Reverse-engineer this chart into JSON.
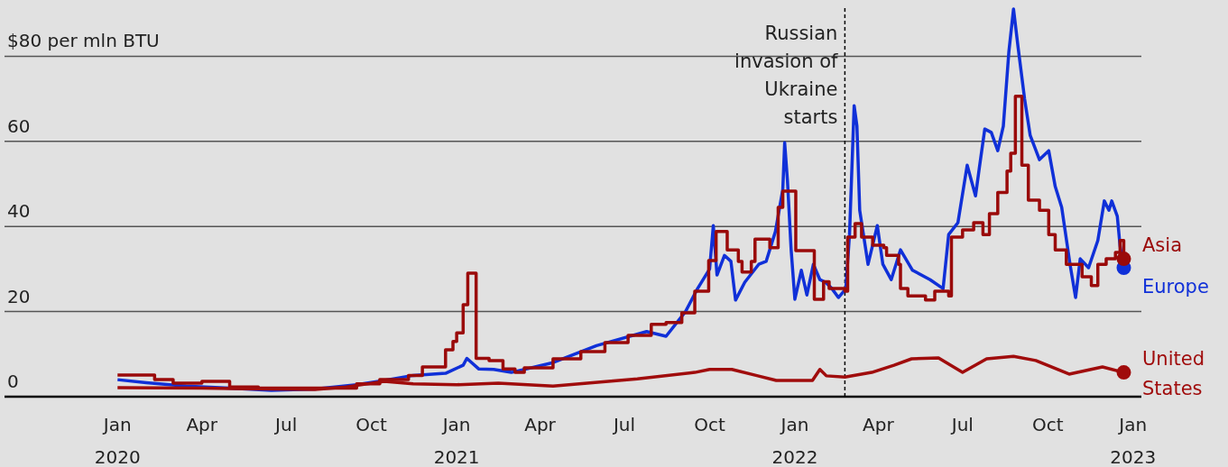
{
  "chart_data": {
    "type": "line",
    "xlim": [
      "2019-09-01",
      "2023-01-10"
    ],
    "ylim": [
      0,
      93
    ],
    "xticks": [
      {
        "value": "2020-01-01",
        "label": "Jan\n2020"
      },
      {
        "value": "2020-04-01",
        "label": "Apr"
      },
      {
        "value": "2020-07-01",
        "label": "Jul"
      },
      {
        "value": "2020-10-01",
        "label": "Oct"
      },
      {
        "value": "2021-01-01",
        "label": "Jan\n2021"
      },
      {
        "value": "2021-04-01",
        "label": "Apr"
      },
      {
        "value": "2021-07-01",
        "label": "Jul"
      },
      {
        "value": "2021-10-01",
        "label": "Oct"
      },
      {
        "value": "2022-01-01",
        "label": "Jan\n2022"
      },
      {
        "value": "2022-04-01",
        "label": "Apr"
      },
      {
        "value": "2022-07-01",
        "label": "Jul"
      },
      {
        "value": "2022-10-01",
        "label": "Oct"
      },
      {
        "value": "2023-01-01",
        "label": "Jan\n2023"
      }
    ],
    "yticks": [
      0,
      20,
      40,
      60,
      {
        "value": 80,
        "label": "$80 per mln BTU"
      }
    ],
    "grid": "y",
    "ref_lines": [
      {
        "axis": "x",
        "value": "2022-02-24",
        "label": "Russian invasion of Ukraine starts",
        "color": "#000000",
        "line_style": "dashed"
      }
    ],
    "series": [
      {
        "name": "Europe",
        "color": "#1030d8",
        "x": [
          "2020-01-01",
          "2020-02-01",
          "2020-03-15",
          "2020-05-01",
          "2020-06-15",
          "2020-08-01",
          "2020-09-15",
          "2020-10-15",
          "2020-11-15",
          "2020-12-20",
          "2021-01-08",
          "2021-01-12",
          "2021-01-25",
          "2021-02-10",
          "2021-03-01",
          "2021-04-15",
          "2021-06-01",
          "2021-07-25",
          "2021-08-15",
          "2021-09-05",
          "2021-09-18",
          "2021-10-01",
          "2021-10-05",
          "2021-10-09",
          "2021-10-17",
          "2021-10-24",
          "2021-10-29",
          "2021-11-08",
          "2021-11-23",
          "2021-12-01",
          "2021-12-11",
          "2021-12-19",
          "2021-12-21",
          "2021-12-24",
          "2021-12-28",
          "2022-01-01",
          "2022-01-08",
          "2022-01-14",
          "2022-01-21",
          "2022-01-28",
          "2022-02-03",
          "2022-02-10",
          "2022-02-17",
          "2022-02-23",
          "2022-02-25",
          "2022-03-01",
          "2022-03-06",
          "2022-03-09",
          "2022-03-12",
          "2022-03-21",
          "2022-03-31",
          "2022-04-06",
          "2022-04-15",
          "2022-04-25",
          "2022-05-08",
          "2022-05-27",
          "2022-06-10",
          "2022-06-16",
          "2022-06-26",
          "2022-07-06",
          "2022-07-15",
          "2022-07-19",
          "2022-07-25",
          "2022-08-01",
          "2022-08-08",
          "2022-08-14",
          "2022-08-20",
          "2022-08-25",
          "2022-08-30",
          "2022-09-06",
          "2022-09-12",
          "2022-09-22",
          "2022-10-02",
          "2022-10-09",
          "2022-10-16",
          "2022-10-25",
          "2022-10-31",
          "2022-11-05",
          "2022-11-14",
          "2022-11-24",
          "2022-12-01",
          "2022-12-06",
          "2022-12-09",
          "2022-12-15",
          "2022-12-18",
          "2022-12-22"
        ],
        "values": [
          4.0,
          3.3,
          2.5,
          2.0,
          1.5,
          1.8,
          2.8,
          3.8,
          5.0,
          5.5,
          7.4,
          9,
          6.5,
          6.4,
          5.7,
          8,
          12,
          15.3,
          14.2,
          20,
          25.4,
          30,
          40.2,
          28.6,
          33.2,
          31.8,
          22.7,
          26.9,
          31.1,
          31.8,
          38.8,
          48.7,
          59.7,
          50.8,
          34.5,
          22.9,
          29.7,
          23.9,
          31.1,
          27.5,
          26.9,
          25.4,
          23.3,
          24.8,
          25.4,
          38.1,
          68.4,
          63.6,
          43.8,
          31.1,
          40.2,
          31.1,
          27.5,
          34.5,
          29.7,
          27.5,
          25.4,
          38.1,
          40.9,
          54.4,
          47.2,
          53.6,
          62.9,
          62.1,
          57.8,
          63.6,
          81.1,
          91.1,
          82,
          69.9,
          61.4,
          55.7,
          57.8,
          49.4,
          44.5,
          31.1,
          23.3,
          32.4,
          30.3,
          36.7,
          46,
          43.8,
          46,
          42.4,
          35.4,
          30.3
        ]
      },
      {
        "name": "Asia",
        "type": "step",
        "color": "#9a0a0a",
        "x": [
          "2020-01-01",
          "2020-02-10",
          "2020-03-01",
          "2020-04-01",
          "2020-05-01",
          "2020-06-01",
          "2020-08-01",
          "2020-09-15",
          "2020-10-10",
          "2020-11-10",
          "2020-11-25",
          "2020-12-15",
          "2020-12-20",
          "2020-12-28",
          "2021-01-01",
          "2021-01-08",
          "2021-01-13",
          "2021-01-22",
          "2021-02-05",
          "2021-02-20",
          "2021-03-05",
          "2021-03-15",
          "2021-04-15",
          "2021-05-15",
          "2021-06-10",
          "2021-07-05",
          "2021-07-30",
          "2021-08-15",
          "2021-09-01",
          "2021-09-15",
          "2021-09-30",
          "2021-10-08",
          "2021-10-20",
          "2021-11-01",
          "2021-11-05",
          "2021-11-15",
          "2021-11-19",
          "2021-12-05",
          "2021-12-14",
          "2021-12-19",
          "2022-01-02",
          "2022-01-22",
          "2022-02-01",
          "2022-02-07",
          "2022-02-24",
          "2022-02-27",
          "2022-03-07",
          "2022-03-14",
          "2022-03-26",
          "2022-04-07",
          "2022-04-10",
          "2022-04-23",
          "2022-04-25",
          "2022-05-03",
          "2022-05-22",
          "2022-06-01",
          "2022-06-16",
          "2022-06-19",
          "2022-07-01",
          "2022-07-13",
          "2022-07-23",
          "2022-07-30",
          "2022-08-08",
          "2022-08-18",
          "2022-08-22",
          "2022-08-27",
          "2022-09-03",
          "2022-09-10",
          "2022-09-22",
          "2022-10-02",
          "2022-10-09",
          "2022-10-21",
          "2022-11-07",
          "2022-11-17",
          "2022-11-24",
          "2022-12-03",
          "2022-12-13",
          "2022-12-18",
          "2022-12-22"
        ],
        "values": [
          5.1,
          4.0,
          3.2,
          3.6,
          2.3,
          2.0,
          2.0,
          3.0,
          4.0,
          5,
          7,
          7,
          11,
          13,
          15,
          21.6,
          29,
          9,
          8.5,
          6.5,
          5.7,
          6.8,
          8.9,
          10.6,
          12.7,
          14.4,
          17,
          17.4,
          19.7,
          24.8,
          32,
          38.8,
          34.5,
          31.8,
          29.3,
          31.8,
          37,
          35,
          44.5,
          48.3,
          34.3,
          22.9,
          27,
          25.4,
          24.8,
          37.5,
          40.7,
          37.5,
          35.6,
          35,
          33.2,
          31.1,
          25.4,
          23.7,
          22.7,
          24.8,
          23.7,
          37.5,
          39.2,
          40.9,
          38.1,
          43,
          48,
          53,
          57.2,
          70.6,
          54.4,
          46.2,
          43.8,
          38.1,
          34.5,
          31.1,
          28.2,
          26.1,
          31.1,
          32.4,
          33.9,
          36.7,
          32.4
        ]
      },
      {
        "name": "United States",
        "color": "#a00c0c",
        "x": [
          "2020-01-01",
          "2020-04-01",
          "2020-06-15",
          "2020-08-01",
          "2020-09-01",
          "2020-10-15",
          "2020-11-15",
          "2021-01-01",
          "2021-02-15",
          "2021-04-15",
          "2021-07-15",
          "2021-09-15",
          "2021-10-01",
          "2021-10-25",
          "2021-11-22",
          "2021-12-12",
          "2022-01-20",
          "2022-01-28",
          "2022-02-04",
          "2022-02-24",
          "2022-03-25",
          "2022-04-18",
          "2022-05-07",
          "2022-06-05",
          "2022-07-01",
          "2022-07-27",
          "2022-08-25",
          "2022-09-18",
          "2022-10-24",
          "2022-11-29",
          "2022-12-22"
        ],
        "values": [
          2.1,
          2.0,
          1.8,
          1.7,
          2.2,
          3.6,
          3.0,
          2.8,
          3.2,
          2.5,
          4.2,
          5.7,
          6.4,
          6.4,
          4.9,
          3.8,
          3.8,
          6.4,
          4.9,
          4.6,
          5.7,
          7.4,
          8.9,
          9.1,
          5.7,
          8.9,
          9.5,
          8.5,
          5.3,
          7,
          5.7
        ]
      }
    ]
  }
}
